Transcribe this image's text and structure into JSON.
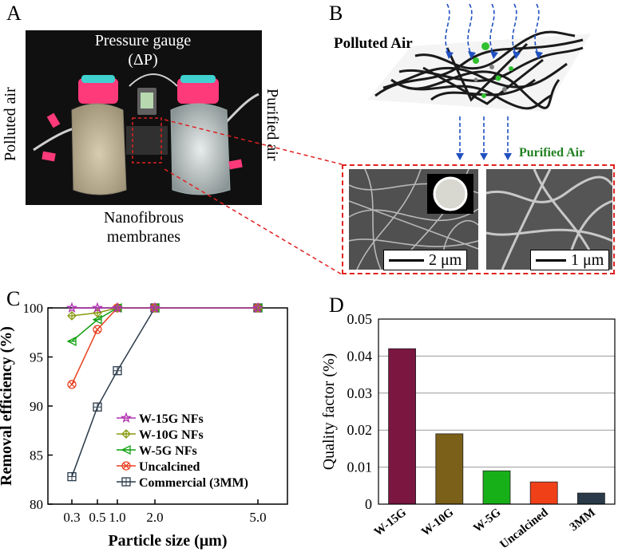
{
  "panel_letters": {
    "a": "A",
    "b": "B",
    "c": "C",
    "d": "D"
  },
  "panel_a": {
    "pressure_gauge": "Pressure gauge",
    "delta_p": "(ΔP)",
    "left_label": "Polluted air",
    "right_label": "Purified air",
    "bottom_label_line1": "Nanofibrous",
    "bottom_label_line2": "membranes"
  },
  "panel_b": {
    "polluted_air": "Polluted Air",
    "purified_air": "Purified Air",
    "scale_left": "2 μm",
    "scale_right": "1 μm"
  },
  "colors": {
    "w15g": "#b030b0",
    "w10g": "#8a9a10",
    "w5g": "#10a010",
    "uncalcined": "#e84020",
    "commercial": "#2a3a4a",
    "bar_w15g": "#7a1640",
    "bar_w10g": "#7a6018",
    "bar_w5g": "#18b018",
    "bar_uncalcined": "#f04018",
    "bar_3mm": "#2a3a48",
    "dashed_red": "#e02020",
    "arrow_blue": "#2050c0",
    "purified_green": "#208020"
  },
  "chart_data": [
    {
      "type": "line",
      "title": "",
      "xlabel": "Particle size (μm)",
      "ylabel": "Removal efficiency (%)",
      "x": [
        0.3,
        0.5,
        1.0,
        2.0,
        5.0
      ],
      "x_tick_labels": [
        "0.3",
        "0.5",
        "1.0",
        "2.0",
        "5.0"
      ],
      "ylim": [
        80,
        100
      ],
      "y_ticks": [
        80,
        85,
        90,
        95,
        100
      ],
      "legend_position": "bottom-left",
      "series": [
        {
          "name": "W-15G NFs",
          "marker": "star",
          "values": [
            100,
            100,
            100,
            100,
            100
          ]
        },
        {
          "name": "W-10G NFs",
          "marker": "diamond",
          "values": [
            99.2,
            99.5,
            100,
            100,
            100
          ]
        },
        {
          "name": "W-5G NFs",
          "marker": "triangle-left",
          "values": [
            96.6,
            98.8,
            100,
            100,
            100
          ]
        },
        {
          "name": "Uncalcined",
          "marker": "circle-x",
          "values": [
            92.2,
            97.8,
            100,
            100,
            100
          ]
        },
        {
          "name": "Commercial (3MM)",
          "marker": "square",
          "values": [
            82.8,
            89.9,
            93.6,
            100,
            100
          ]
        }
      ]
    },
    {
      "type": "bar",
      "title": "",
      "xlabel": "",
      "ylabel": "Quality factor (%)",
      "categories": [
        "W-15G",
        "W-10G",
        "W-5G",
        "Uncalcined",
        "3MM"
      ],
      "values": [
        0.042,
        0.019,
        0.009,
        0.006,
        0.003
      ],
      "ylim": [
        0,
        0.05
      ],
      "y_ticks": [
        0,
        0.01,
        0.02,
        0.03,
        0.04,
        0.05
      ],
      "y_tick_labels": [
        "0",
        "0.01",
        "0.02",
        "0.03",
        "0.04",
        "0.05"
      ],
      "grid": true
    }
  ]
}
